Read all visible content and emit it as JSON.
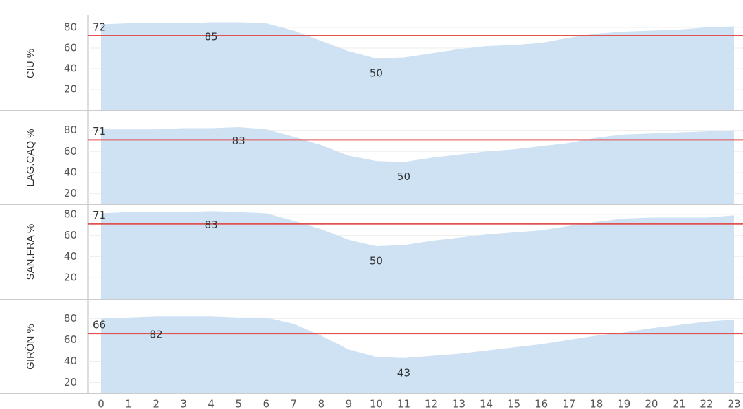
{
  "chart_data": {
    "type": "area",
    "x": [
      0,
      1,
      2,
      3,
      4,
      5,
      6,
      7,
      8,
      9,
      10,
      11,
      12,
      13,
      14,
      15,
      16,
      17,
      18,
      19,
      20,
      21,
      22,
      23
    ],
    "area_color": "#cfe2f3",
    "ref_color": "#e05353",
    "grid": true,
    "panels": [
      {
        "ylabel": "CIU %",
        "ylim": [
          0,
          90
        ],
        "yticks": [
          20,
          40,
          60,
          80
        ],
        "ref": 72,
        "values": [
          83,
          84,
          84,
          84,
          85,
          85,
          84,
          77,
          67,
          57,
          50,
          51,
          55,
          59,
          62,
          63,
          65,
          70,
          74,
          76,
          77,
          78,
          80,
          81
        ]
      },
      {
        "ylabel": "LAG.CAQ %",
        "ylim": [
          10,
          98
        ],
        "yticks": [
          20,
          40,
          60,
          80
        ],
        "ref": 71,
        "values": [
          81,
          81,
          81,
          82,
          82,
          83,
          81,
          74,
          66,
          56,
          51,
          50,
          54,
          57,
          60,
          62,
          65,
          68,
          73,
          76,
          77,
          78,
          79,
          80
        ]
      },
      {
        "ylabel": "SAN.FRA %",
        "ylim": [
          0,
          89
        ],
        "yticks": [
          20,
          40,
          60,
          80
        ],
        "ref": 71,
        "values": [
          81,
          82,
          82,
          82,
          83,
          82,
          81,
          74,
          66,
          56,
          50,
          51,
          55,
          58,
          61,
          63,
          65,
          69,
          73,
          76,
          77,
          77,
          77,
          79
        ]
      },
      {
        "ylabel": "GIRÓN %",
        "ylim": [
          10,
          97
        ],
        "yticks": [
          20,
          40,
          60,
          80
        ],
        "ref": 66,
        "values": [
          80,
          81,
          82,
          82,
          82,
          81,
          81,
          75,
          64,
          51,
          44,
          43,
          45,
          47,
          50,
          53,
          56,
          60,
          64,
          67,
          71,
          74,
          77,
          79
        ]
      }
    ]
  }
}
